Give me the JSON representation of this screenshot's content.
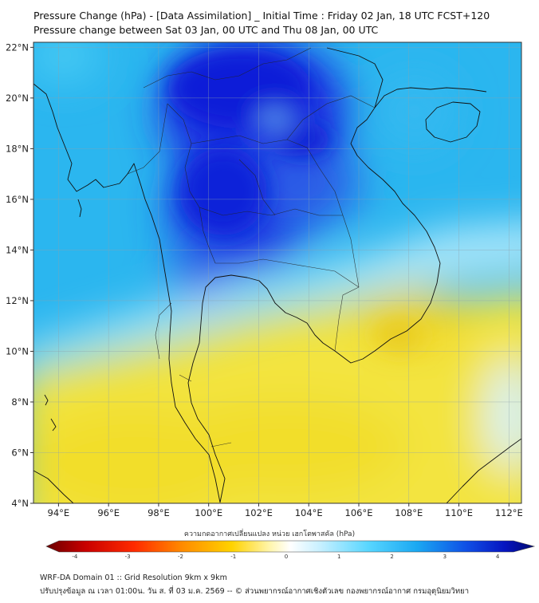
{
  "title_line1": "Pressure Change (hPa) - [Data Assimilation] _ Initial Time : Friday 02 Jan, 18 UTC FCST+120",
  "title_line2": "Pressure change between Sat 03 Jan, 00 UTC and Thu 08 Jan, 00 UTC",
  "map": {
    "lon_range": [
      93,
      112.5
    ],
    "lat_range": [
      4,
      22.2
    ],
    "lon_ticks": [
      "94°E",
      "96°E",
      "98°E",
      "100°E",
      "102°E",
      "104°E",
      "106°E",
      "108°E",
      "110°E",
      "112°E"
    ],
    "lat_ticks": [
      "4°N",
      "6°N",
      "8°N",
      "10°N",
      "12°N",
      "14°N",
      "16°N",
      "18°N",
      "20°N",
      "22°N"
    ],
    "field": "pressure change (hPa)",
    "colors": {
      "strong_rise": "#0a1cd8",
      "rise": "#2ab0ee",
      "neutral": "#ffffff",
      "fall": "#f4e23a"
    }
  },
  "colorbar": {
    "title": "ความกดอากาศเปลี่ยนแปลง หน่วย เฮกโตพาสคัล (hPa)",
    "ticks": [
      "-4",
      "-3",
      "-2",
      "-1",
      "0",
      "1",
      "2",
      "3",
      "4"
    ],
    "range": [
      -4.3,
      4.3
    ]
  },
  "footer_line1": "WRF-DA Domain 01 :: Grid Resolution 9km x 9km",
  "footer_line2": "ปรับปรุงข้อมูล ณ เวลา 01:00น. วัน ส. ที่ 03 ม.ค. 2569 -- © ส่วนพยากรณ์อากาศเชิงตัวเลข กองพยากรณ์อากาศ กรมอุตุนิยมวิทยา"
}
